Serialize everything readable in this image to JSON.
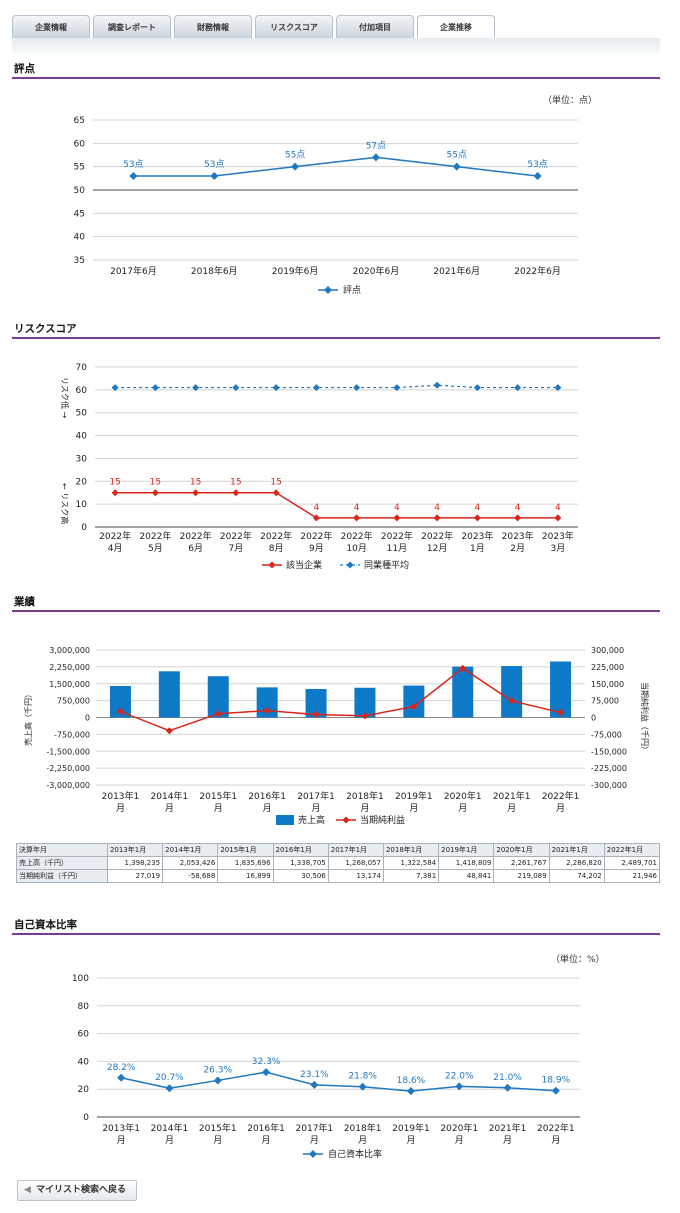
{
  "tabs": [
    "企業情報",
    "調査レポート",
    "財務情報",
    "リスクスコア",
    "付加項目",
    "企業推移"
  ],
  "active_tab": 5,
  "sections": {
    "score": "評点",
    "risk": "リスクスコア",
    "perf": "業績",
    "equity": "自己資本比率"
  },
  "units": {
    "score": "（単位：点）",
    "equity": "（単位：%）"
  },
  "colors": {
    "accent_rule": "#7b3c8c",
    "series_blue": "#1f78c1",
    "series_red": "#d8261c",
    "bar_blue": "#0e79c7"
  },
  "back_button": {
    "icon": "chevron-left-icon",
    "label": "マイリスト検索へ戻る"
  },
  "chart_data": [
    {
      "id": "score",
      "type": "line",
      "categories": [
        "2017年6月",
        "2018年6月",
        "2019年6月",
        "2020年6月",
        "2021年6月",
        "2022年6月"
      ],
      "series": [
        {
          "name": "評点",
          "values": [
            53,
            53,
            55,
            57,
            55,
            53
          ]
        }
      ],
      "data_labels": [
        "53点",
        "53点",
        "55点",
        "57点",
        "55点",
        "53点"
      ],
      "ylim": [
        35,
        65
      ],
      "yticks": [
        35,
        40,
        45,
        50,
        55,
        60,
        65
      ],
      "legend": "bottom",
      "grid": true
    },
    {
      "id": "risk",
      "type": "line",
      "categories": [
        [
          "2022年",
          "4月"
        ],
        [
          "2022年",
          "5月"
        ],
        [
          "2022年",
          "6月"
        ],
        [
          "2022年",
          "7月"
        ],
        [
          "2022年",
          "8月"
        ],
        [
          "2022年",
          "9月"
        ],
        [
          "2022年",
          "10月"
        ],
        [
          "2022年",
          "11月"
        ],
        [
          "2022年",
          "12月"
        ],
        [
          "2023年",
          "1月"
        ],
        [
          "2023年",
          "2月"
        ],
        [
          "2023年",
          "3月"
        ]
      ],
      "series": [
        {
          "name": "該当企業",
          "values": [
            15,
            15,
            15,
            15,
            15,
            4,
            4,
            4,
            4,
            4,
            4,
            4
          ]
        },
        {
          "name": "同業種平均",
          "values": [
            61,
            61,
            61,
            61,
            61,
            61,
            61,
            61,
            62,
            61,
            61,
            61
          ]
        }
      ],
      "ylim": [
        0,
        70
      ],
      "yticks": [
        0,
        10,
        20,
        30,
        40,
        50,
        60,
        70
      ],
      "ylabel_low": "リスク低 →",
      "ylabel_high": "← リスク高",
      "legend": "bottom",
      "grid": true
    },
    {
      "id": "perf",
      "type": "bar",
      "categories": [
        [
          "2013年1",
          "月"
        ],
        [
          "2014年1",
          "月"
        ],
        [
          "2015年1",
          "月"
        ],
        [
          "2016年1",
          "月"
        ],
        [
          "2017年1",
          "月"
        ],
        [
          "2018年1",
          "月"
        ],
        [
          "2019年1",
          "月"
        ],
        [
          "2020年1",
          "月"
        ],
        [
          "2021年1",
          "月"
        ],
        [
          "2022年1",
          "月"
        ]
      ],
      "series": [
        {
          "name": "売上高",
          "type": "bar",
          "axis": "left",
          "values": [
            1398235,
            2053426,
            1835696,
            1338705,
            1268057,
            1322584,
            1418809,
            2261767,
            2286820,
            2489701
          ]
        },
        {
          "name": "当期純利益",
          "type": "line",
          "axis": "right",
          "values": [
            27019,
            -58688,
            16899,
            30506,
            13174,
            7381,
            48841,
            219089,
            74202,
            21946
          ]
        }
      ],
      "ylim": [
        -3000000,
        3000000
      ],
      "yticks": [
        "-3,000,000",
        "-2,250,000",
        "-1,500,000",
        "-750,000",
        "0",
        "750,000",
        "1,500,000",
        "2,250,000",
        "3,000,000"
      ],
      "y2lim": [
        -300000,
        300000
      ],
      "y2ticks": [
        "-300,000",
        "-225,000",
        "-150,000",
        "-75,000",
        "0",
        "75,000",
        "150,000",
        "225,000",
        "300,000"
      ],
      "ylabel": "売上高（千円）",
      "y2label": "当期純利益（千円）",
      "legend": "bottom",
      "grid": true
    },
    {
      "id": "equity",
      "type": "line",
      "categories": [
        [
          "2013年1",
          "月"
        ],
        [
          "2014年1",
          "月"
        ],
        [
          "2015年1",
          "月"
        ],
        [
          "2016年1",
          "月"
        ],
        [
          "2017年1",
          "月"
        ],
        [
          "2018年1",
          "月"
        ],
        [
          "2019年1",
          "月"
        ],
        [
          "2020年1",
          "月"
        ],
        [
          "2021年1",
          "月"
        ],
        [
          "2022年1",
          "月"
        ]
      ],
      "series": [
        {
          "name": "自己資本比率",
          "values": [
            28.2,
            20.7,
            26.3,
            32.3,
            23.1,
            21.8,
            18.6,
            22.0,
            21.0,
            18.9
          ]
        }
      ],
      "data_labels": [
        "28.2%",
        "20.7%",
        "26.3%",
        "32.3%",
        "23.1%",
        "21.8%",
        "18.6%",
        "22.0%",
        "21.0%",
        "18.9%"
      ],
      "ylim": [
        0,
        100
      ],
      "yticks": [
        0,
        20,
        40,
        60,
        80,
        100
      ],
      "legend": "bottom",
      "grid": true
    },
    {
      "id": "perf_table",
      "type": "table",
      "columns": [
        "決算年月",
        "2013年1月",
        "2014年1月",
        "2015年1月",
        "2016年1月",
        "2017年1月",
        "2018年1月",
        "2019年1月",
        "2020年1月",
        "2021年1月",
        "2022年1月"
      ],
      "rows": [
        [
          "売上高（千円）",
          "1,398,235",
          "2,053,426",
          "1,835,696",
          "1,338,705",
          "1,268,057",
          "1,322,584",
          "1,418,809",
          "2,261,767",
          "2,286,820",
          "2,489,701"
        ],
        [
          "当期純利益（千円）",
          "27,019",
          "-58,688",
          "16,899",
          "30,506",
          "13,174",
          "7,381",
          "48,841",
          "219,089",
          "74,202",
          "21,946"
        ]
      ]
    }
  ]
}
